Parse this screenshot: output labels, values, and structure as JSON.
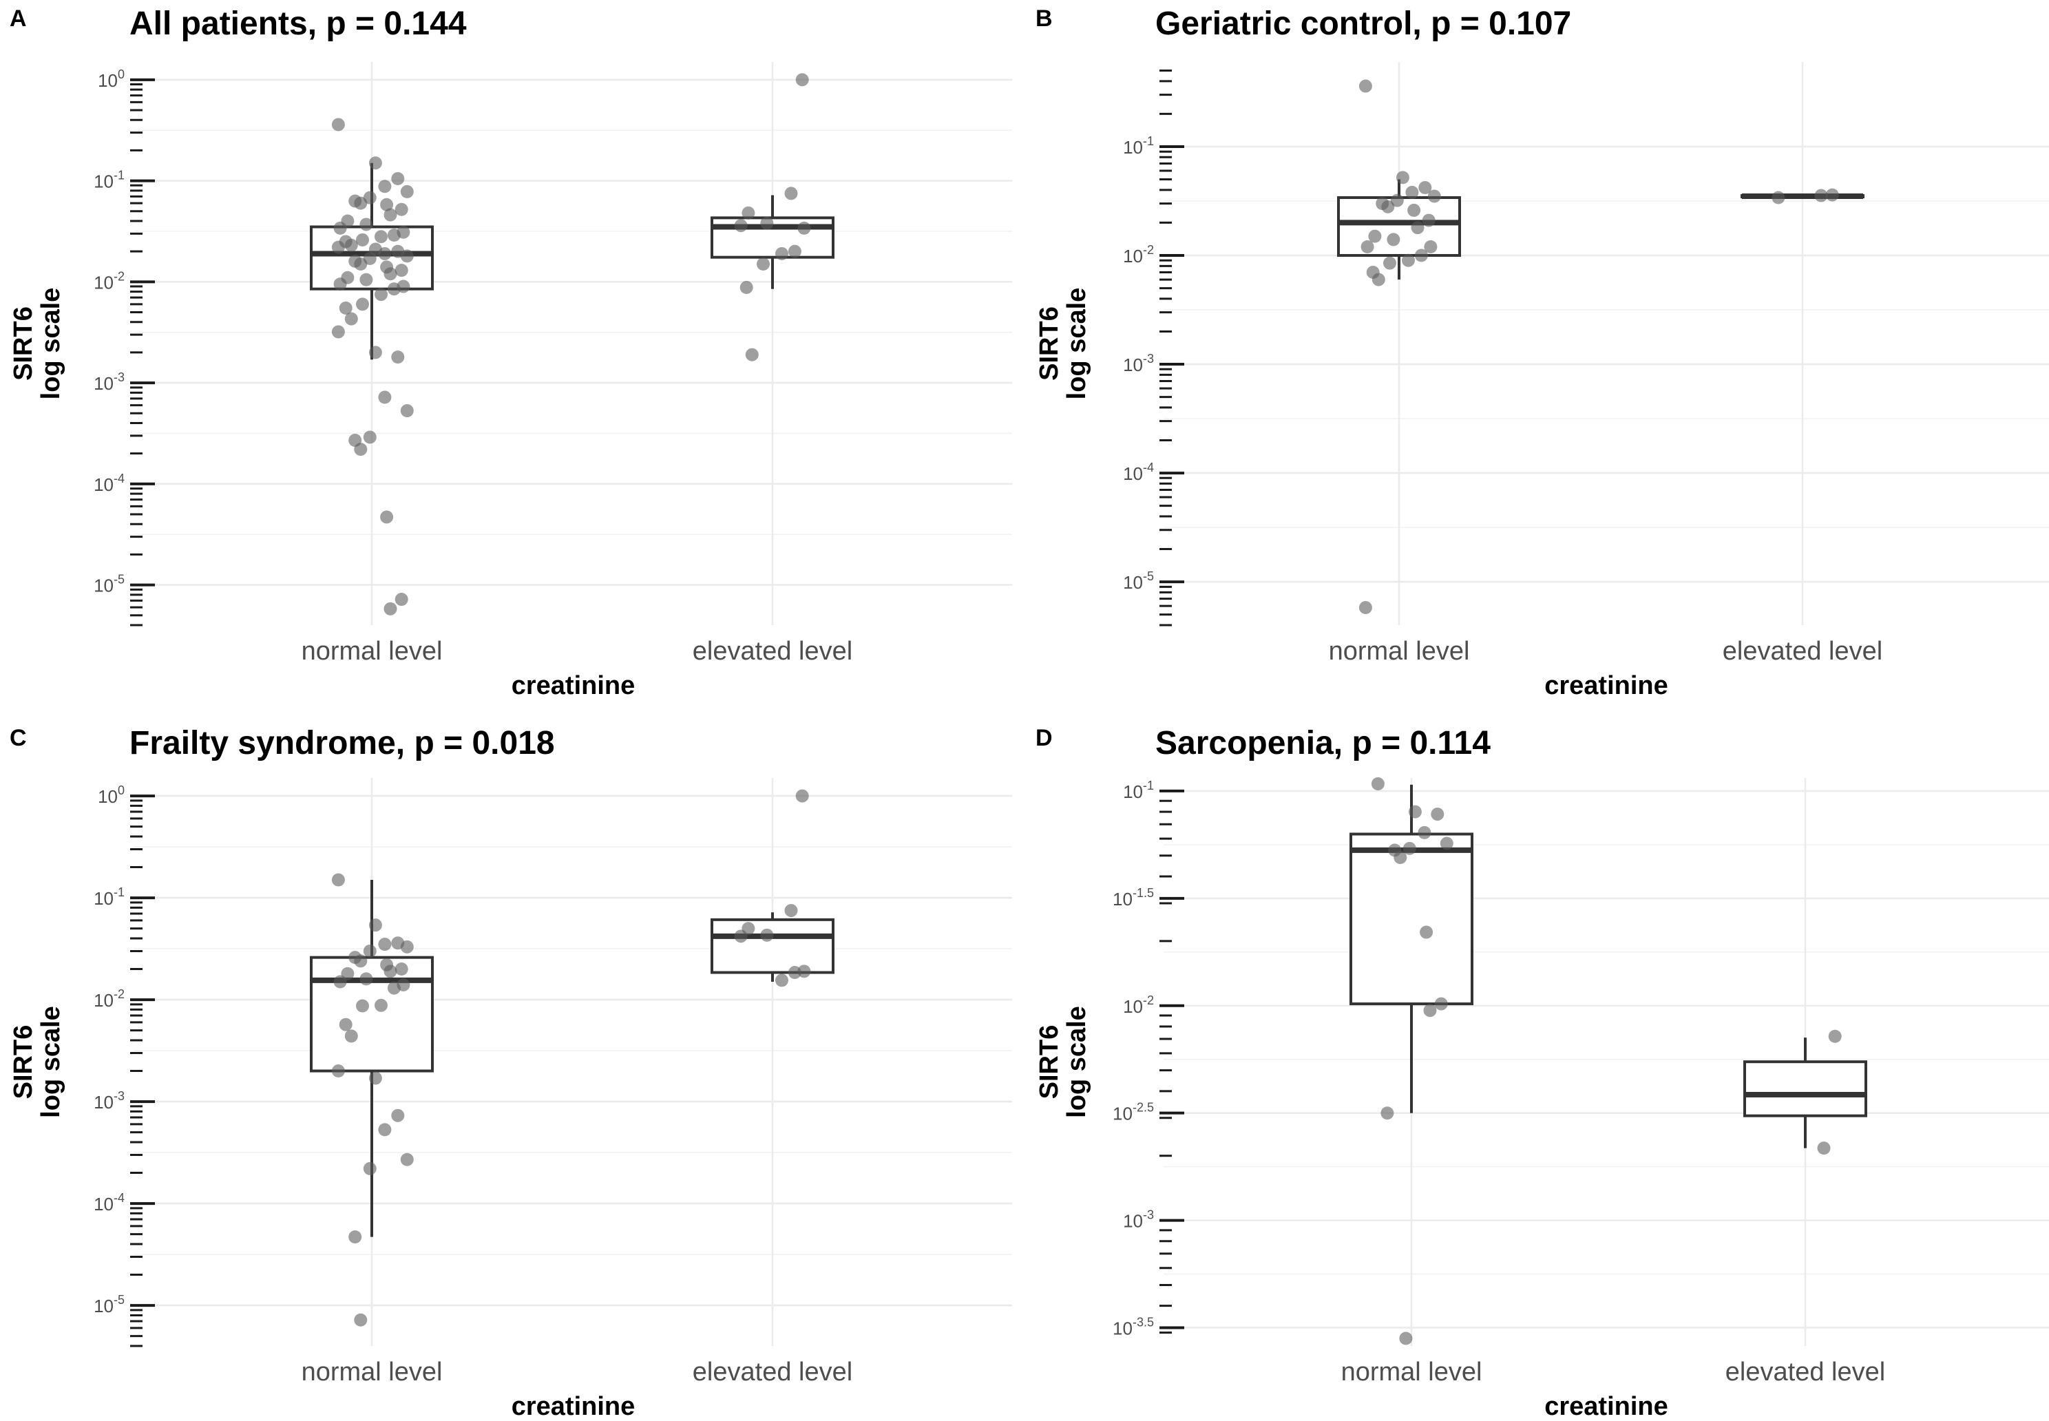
{
  "figure": {
    "point_color": "#595959",
    "box_color": "#333333",
    "grid_color": "#ebebeb"
  },
  "chart_data": [
    {
      "letter": "A",
      "title": "All patients, p = 0.144",
      "type": "box-jitter",
      "xlabel": "creatinine",
      "ylabel": [
        "SIRT6",
        "log scale"
      ],
      "y_scale": "log10",
      "ylim": [
        4e-06,
        1.5
      ],
      "y_ticks": [
        {
          "base": "10",
          "exp": "0",
          "value": 1
        },
        {
          "base": "10",
          "exp": "-1",
          "value": 0.1
        },
        {
          "base": "10",
          "exp": "-2",
          "value": 0.01
        },
        {
          "base": "10",
          "exp": "-3",
          "value": 0.001
        },
        {
          "base": "10",
          "exp": "-4",
          "value": 0.0001
        },
        {
          "base": "10",
          "exp": "-5",
          "value": 1e-05
        }
      ],
      "minor_ticks": "log-decades",
      "categories": [
        {
          "label": "normal level",
          "box": {
            "q1": 0.0085,
            "median": 0.019,
            "q3": 0.035,
            "whisker_low": 0.0017,
            "whisker_high": 0.15
          },
          "points": [
            0.36,
            0.15,
            0.105,
            0.088,
            0.078,
            0.068,
            0.063,
            0.06,
            0.058,
            0.052,
            0.046,
            0.04,
            0.037,
            0.034,
            0.031,
            0.029,
            0.028,
            0.026,
            0.025,
            0.023,
            0.022,
            0.021,
            0.02,
            0.019,
            0.018,
            0.017,
            0.016,
            0.015,
            0.014,
            0.013,
            0.012,
            0.011,
            0.0105,
            0.0095,
            0.009,
            0.0085,
            0.0075,
            0.006,
            0.0055,
            0.0043,
            0.0032,
            0.002,
            0.0018,
            0.00072,
            0.00053,
            0.00029,
            0.00027,
            0.00022,
            4.7e-05,
            7.2e-06,
            5.8e-06
          ]
        },
        {
          "label": "elevated level",
          "box": {
            "q1": 0.0175,
            "median": 0.035,
            "q3": 0.043,
            "whisker_low": 0.0085,
            "whisker_high": 0.072
          },
          "points": [
            1.0,
            0.075,
            0.048,
            0.038,
            0.036,
            0.034,
            0.02,
            0.019,
            0.015,
            0.0088,
            0.0019
          ]
        }
      ]
    },
    {
      "letter": "B",
      "title": "Geriatric control, p = 0.107",
      "type": "box-jitter",
      "xlabel": "creatinine",
      "ylabel": [
        "SIRT6",
        "log scale"
      ],
      "y_scale": "log10",
      "ylim": [
        4e-06,
        0.6
      ],
      "y_ticks": [
        {
          "base": "10",
          "exp": "-1",
          "value": 0.1
        },
        {
          "base": "10",
          "exp": "-2",
          "value": 0.01
        },
        {
          "base": "10",
          "exp": "-3",
          "value": 0.001
        },
        {
          "base": "10",
          "exp": "-4",
          "value": 0.0001
        },
        {
          "base": "10",
          "exp": "-5",
          "value": 1e-05
        }
      ],
      "minor_ticks": "log-decades",
      "categories": [
        {
          "label": "normal level",
          "box": {
            "q1": 0.01,
            "median": 0.02,
            "q3": 0.034,
            "whisker_low": 0.006,
            "whisker_high": 0.05
          },
          "points": [
            0.36,
            0.052,
            0.042,
            0.038,
            0.035,
            0.032,
            0.03,
            0.028,
            0.026,
            0.021,
            0.018,
            0.015,
            0.014,
            0.012,
            0.012,
            0.01,
            0.009,
            0.0085,
            0.007,
            0.006,
            5.8e-06
          ]
        },
        {
          "label": "elevated level",
          "box": {
            "q1": 0.0345,
            "median": 0.035,
            "q3": 0.0355,
            "whisker_low": 0.034,
            "whisker_high": 0.036
          },
          "points": [
            0.036,
            0.0355,
            0.034
          ]
        }
      ]
    },
    {
      "letter": "C",
      "title": "Frailty syndrome, p = 0.018",
      "type": "box-jitter",
      "xlabel": "creatinine",
      "ylabel": [
        "SIRT6",
        "log scale"
      ],
      "y_scale": "log10",
      "ylim": [
        4e-06,
        1.5
      ],
      "y_ticks": [
        {
          "base": "10",
          "exp": "0",
          "value": 1
        },
        {
          "base": "10",
          "exp": "-1",
          "value": 0.1
        },
        {
          "base": "10",
          "exp": "-2",
          "value": 0.01
        },
        {
          "base": "10",
          "exp": "-3",
          "value": 0.001
        },
        {
          "base": "10",
          "exp": "-4",
          "value": 0.0001
        },
        {
          "base": "10",
          "exp": "-5",
          "value": 1e-05
        }
      ],
      "minor_ticks": "log-decades",
      "categories": [
        {
          "label": "normal level",
          "box": {
            "q1": 0.002,
            "median": 0.0155,
            "q3": 0.026,
            "whisker_low": 4.7e-05,
            "whisker_high": 0.15
          },
          "points": [
            0.15,
            0.054,
            0.036,
            0.035,
            0.033,
            0.03,
            0.026,
            0.024,
            0.022,
            0.02,
            0.019,
            0.018,
            0.016,
            0.015,
            0.014,
            0.013,
            0.0088,
            0.0087,
            0.0057,
            0.0044,
            0.002,
            0.0017,
            0.00073,
            0.00053,
            0.00027,
            0.00022,
            4.7e-05,
            7.2e-06
          ]
        },
        {
          "label": "elevated level",
          "box": {
            "q1": 0.0185,
            "median": 0.042,
            "q3": 0.061,
            "whisker_low": 0.015,
            "whisker_high": 0.072
          },
          "points": [
            1.0,
            0.075,
            0.05,
            0.043,
            0.042,
            0.019,
            0.0185,
            0.0155
          ]
        }
      ]
    },
    {
      "letter": "D",
      "title": "Sarcopenia, p = 0.114",
      "type": "box-jitter",
      "xlabel": "creatinine",
      "ylabel": [
        "SIRT6",
        "log scale"
      ],
      "y_scale": "log10",
      "ylim": [
        0.00026,
        0.115
      ],
      "y_ticks": [
        {
          "base": "10",
          "exp": "-1",
          "value": 0.1
        },
        {
          "base": "10",
          "exp": "-1.5",
          "value": 0.0316228
        },
        {
          "base": "10",
          "exp": "-2",
          "value": 0.01
        },
        {
          "base": "10",
          "exp": "-2.5",
          "value": 0.00316228
        },
        {
          "base": "10",
          "exp": "-3",
          "value": 0.001
        },
        {
          "base": "10",
          "exp": "-3.5",
          "value": 0.000316228
        }
      ],
      "minor_ticks": "log-decades",
      "categories": [
        {
          "label": "normal level",
          "box": {
            "q1": 0.0102,
            "median": 0.053,
            "q3": 0.063,
            "whisker_low": 0.00316,
            "whisker_high": 0.107
          },
          "points": [
            0.108,
            0.08,
            0.078,
            0.064,
            0.057,
            0.054,
            0.053,
            0.049,
            0.022,
            0.0102,
            0.0095,
            0.00316,
            0.000282
          ]
        },
        {
          "label": "elevated level",
          "box": {
            "q1": 0.00307,
            "median": 0.00385,
            "q3": 0.00548,
            "whisker_low": 0.00217,
            "whisker_high": 0.0071
          },
          "points": [
            0.0072,
            0.00217
          ]
        }
      ]
    }
  ]
}
